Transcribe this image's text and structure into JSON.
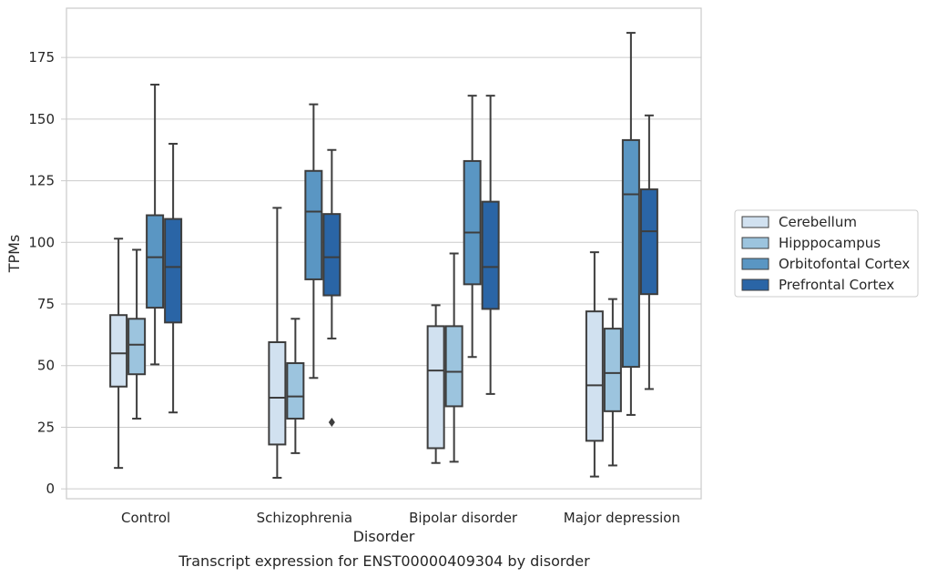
{
  "chart_data": {
    "type": "box",
    "caption": "Transcript expression for ENST00000409304 by disorder",
    "xlabel": "Disorder",
    "ylabel": "TPMs",
    "ylim": [
      -4,
      195
    ],
    "yticks": [
      0,
      25,
      50,
      75,
      100,
      125,
      150,
      175
    ],
    "grid": "horizontal",
    "legend_position": "right",
    "categories": [
      "Control",
      "Schizophrenia",
      "Bipolar disorder",
      "Major depression"
    ],
    "series": [
      {
        "name": "Cerebellum",
        "color": "#d1e1f0",
        "boxes": [
          {
            "whislo": 8.5,
            "q1": 41.5,
            "med": 55,
            "q3": 70.5,
            "whishi": 101.5,
            "fliers": []
          },
          {
            "whislo": 4.5,
            "q1": 18,
            "med": 37,
            "q3": 59.5,
            "whishi": 114,
            "fliers": []
          },
          {
            "whislo": 10.5,
            "q1": 16.5,
            "med": 48,
            "q3": 66,
            "whishi": 74.5,
            "fliers": []
          },
          {
            "whislo": 5,
            "q1": 19.5,
            "med": 42,
            "q3": 72,
            "whishi": 96,
            "fliers": []
          }
        ]
      },
      {
        "name": "Hipppocampus",
        "color": "#9cc4de",
        "boxes": [
          {
            "whislo": 28.5,
            "q1": 46.5,
            "med": 58.5,
            "q3": 69,
            "whishi": 97,
            "fliers": []
          },
          {
            "whislo": 14.5,
            "q1": 28.5,
            "med": 37.5,
            "q3": 51,
            "whishi": 69,
            "fliers": []
          },
          {
            "whislo": 11,
            "q1": 33.5,
            "med": 47.5,
            "q3": 66,
            "whishi": 95.5,
            "fliers": []
          },
          {
            "whislo": 9.5,
            "q1": 31.5,
            "med": 47,
            "q3": 65,
            "whishi": 77,
            "fliers": []
          }
        ]
      },
      {
        "name": "Orbitofontal Cortex",
        "color": "#5a96c3",
        "boxes": [
          {
            "whislo": 50.5,
            "q1": 73.5,
            "med": 94,
            "q3": 111,
            "whishi": 164,
            "fliers": []
          },
          {
            "whislo": 45,
            "q1": 85,
            "med": 112.5,
            "q3": 129,
            "whishi": 156,
            "fliers": []
          },
          {
            "whislo": 53.5,
            "q1": 83,
            "med": 104,
            "q3": 133,
            "whishi": 159.5,
            "fliers": []
          },
          {
            "whislo": 30,
            "q1": 49.5,
            "med": 119.5,
            "q3": 141.5,
            "whishi": 185,
            "fliers": []
          }
        ]
      },
      {
        "name": "Prefrontal Cortex",
        "color": "#2a65a6",
        "boxes": [
          {
            "whislo": 31,
            "q1": 67.5,
            "med": 90,
            "q3": 109.5,
            "whishi": 140,
            "fliers": []
          },
          {
            "whislo": 61,
            "q1": 78.5,
            "med": 94,
            "q3": 111.5,
            "whishi": 137.5,
            "fliers": [
              27
            ]
          },
          {
            "whislo": 38.5,
            "q1": 73,
            "med": 90,
            "q3": 116.5,
            "whishi": 159.5,
            "fliers": []
          },
          {
            "whislo": 40.5,
            "q1": 79,
            "med": 104.5,
            "q3": 121.5,
            "whishi": 151.5,
            "fliers": []
          }
        ]
      }
    ]
  }
}
